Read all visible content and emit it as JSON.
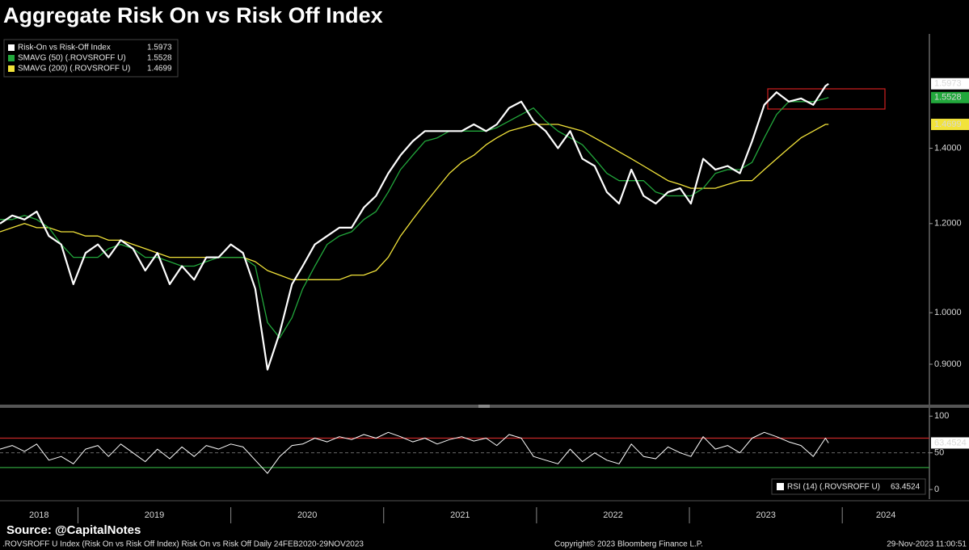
{
  "title": "Aggregate Risk On vs Risk Off Index",
  "source": "Source: @CapitalNotes",
  "footer": {
    "description": ".ROVSROFF U Index (Risk On vs Risk Off Index) Risk On vs Risk Off  Daily 24FEB2020-29NOV2023",
    "copyright": "Copyright© 2023 Bloomberg Finance L.P.",
    "timestamp": "29-Nov-2023 11:00:51"
  },
  "chart_data": [
    {
      "type": "line",
      "x": [
        2018.49,
        2018.57,
        2018.65,
        2018.73,
        2018.81,
        2018.89,
        2018.97,
        2019.05,
        2019.13,
        2019.2,
        2019.28,
        2019.36,
        2019.44,
        2019.52,
        2019.6,
        2019.68,
        2019.76,
        2019.84,
        2019.92,
        2020.0,
        2020.08,
        2020.16,
        2020.24,
        2020.32,
        2020.4,
        2020.47,
        2020.55,
        2020.63,
        2020.71,
        2020.79,
        2020.87,
        2020.95,
        2021.03,
        2021.11,
        2021.19,
        2021.27,
        2021.35,
        2021.43,
        2021.51,
        2021.59,
        2021.67,
        2021.74,
        2021.82,
        2021.9,
        2021.98,
        2022.06,
        2022.14,
        2022.22,
        2022.3,
        2022.38,
        2022.46,
        2022.54,
        2022.62,
        2022.7,
        2022.78,
        2022.86,
        2022.94,
        2023.01,
        2023.09,
        2023.17,
        2023.25,
        2023.33,
        2023.41,
        2023.49,
        2023.57,
        2023.65,
        2023.73,
        2023.81,
        2023.89,
        2023.91
      ],
      "xlim": [
        2018.49,
        2024.57
      ],
      "xticks": [
        2019,
        2020,
        2021,
        2022,
        2023,
        2024
      ],
      "year_labels": [
        "2018",
        "2019",
        "2020",
        "2021",
        "2022",
        "2023",
        "2024"
      ],
      "ylim": [
        0.83,
        1.76
      ],
      "yticks": [
        {
          "value": 0.9,
          "label": "0.9000"
        },
        {
          "value": 1.0,
          "label": "1.0000"
        },
        {
          "value": 1.2,
          "label": "1.2000"
        },
        {
          "value": 1.4,
          "label": "1.4000"
        }
      ],
      "log_scale": true,
      "grid": false,
      "series": [
        {
          "name": "Risk-On vs Risk-Off Index",
          "color": "#ffffff",
          "values": [
            1.2,
            1.22,
            1.21,
            1.23,
            1.17,
            1.15,
            1.06,
            1.13,
            1.15,
            1.12,
            1.16,
            1.14,
            1.09,
            1.13,
            1.06,
            1.1,
            1.07,
            1.12,
            1.12,
            1.15,
            1.13,
            1.05,
            0.89,
            0.96,
            1.06,
            1.1,
            1.15,
            1.17,
            1.19,
            1.19,
            1.24,
            1.27,
            1.33,
            1.38,
            1.42,
            1.45,
            1.45,
            1.45,
            1.45,
            1.47,
            1.45,
            1.47,
            1.52,
            1.54,
            1.48,
            1.45,
            1.4,
            1.45,
            1.37,
            1.35,
            1.28,
            1.25,
            1.34,
            1.27,
            1.25,
            1.28,
            1.29,
            1.25,
            1.37,
            1.34,
            1.35,
            1.33,
            1.42,
            1.53,
            1.57,
            1.54,
            1.55,
            1.53,
            1.59,
            1.5973
          ]
        },
        {
          "name": "SMAVG (50) (.ROVSROFF U)",
          "color": "#22a83c",
          "values": [
            1.21,
            1.21,
            1.22,
            1.21,
            1.19,
            1.15,
            1.12,
            1.12,
            1.12,
            1.14,
            1.15,
            1.14,
            1.12,
            1.12,
            1.11,
            1.1,
            1.1,
            1.11,
            1.12,
            1.12,
            1.12,
            1.1,
            0.98,
            0.95,
            0.99,
            1.05,
            1.1,
            1.15,
            1.17,
            1.18,
            1.21,
            1.23,
            1.28,
            1.34,
            1.38,
            1.42,
            1.43,
            1.45,
            1.45,
            1.45,
            1.45,
            1.46,
            1.48,
            1.5,
            1.52,
            1.48,
            1.45,
            1.43,
            1.41,
            1.37,
            1.33,
            1.31,
            1.31,
            1.31,
            1.28,
            1.27,
            1.27,
            1.27,
            1.29,
            1.33,
            1.34,
            1.34,
            1.36,
            1.43,
            1.5,
            1.54,
            1.54,
            1.54,
            1.55,
            1.5528
          ]
        },
        {
          "name": "SMAVG (200) (.ROVSROFF U)",
          "color": "#f2e33a",
          "values": [
            1.18,
            1.19,
            1.2,
            1.19,
            1.19,
            1.18,
            1.18,
            1.17,
            1.17,
            1.16,
            1.16,
            1.15,
            1.14,
            1.13,
            1.12,
            1.12,
            1.12,
            1.12,
            1.12,
            1.12,
            1.12,
            1.11,
            1.09,
            1.08,
            1.07,
            1.07,
            1.07,
            1.07,
            1.07,
            1.08,
            1.08,
            1.09,
            1.12,
            1.17,
            1.21,
            1.25,
            1.29,
            1.33,
            1.36,
            1.38,
            1.41,
            1.43,
            1.45,
            1.46,
            1.47,
            1.47,
            1.47,
            1.46,
            1.45,
            1.43,
            1.41,
            1.39,
            1.37,
            1.35,
            1.33,
            1.31,
            1.3,
            1.29,
            1.29,
            1.29,
            1.3,
            1.31,
            1.31,
            1.34,
            1.37,
            1.4,
            1.43,
            1.45,
            1.47,
            1.4699
          ]
        }
      ]
    },
    {
      "type": "line",
      "x": [
        2018.49,
        2018.57,
        2018.65,
        2018.73,
        2018.81,
        2018.89,
        2018.97,
        2019.05,
        2019.13,
        2019.2,
        2019.28,
        2019.36,
        2019.44,
        2019.52,
        2019.6,
        2019.68,
        2019.76,
        2019.84,
        2019.92,
        2020.0,
        2020.08,
        2020.16,
        2020.24,
        2020.32,
        2020.4,
        2020.47,
        2020.55,
        2020.63,
        2020.71,
        2020.79,
        2020.87,
        2020.95,
        2021.03,
        2021.11,
        2021.19,
        2021.27,
        2021.35,
        2021.43,
        2021.51,
        2021.59,
        2021.67,
        2021.74,
        2021.82,
        2021.9,
        2021.98,
        2022.06,
        2022.14,
        2022.22,
        2022.3,
        2022.38,
        2022.46,
        2022.54,
        2022.62,
        2022.7,
        2022.78,
        2022.86,
        2022.94,
        2023.01,
        2023.09,
        2023.17,
        2023.25,
        2023.33,
        2023.41,
        2023.49,
        2023.57,
        2023.65,
        2023.73,
        2023.81,
        2023.89,
        2023.91
      ],
      "xlim": [
        2018.49,
        2024.57
      ],
      "ylim": [
        -12,
        108
      ],
      "yticks": [
        0,
        50,
        100
      ],
      "log_scale": false,
      "reference_lines": [
        {
          "value": 70,
          "color": "#c62828"
        },
        {
          "value": 30,
          "color": "#2e9e3a"
        },
        {
          "value": 50,
          "color": "#777777",
          "style": "dashed"
        }
      ],
      "series": [
        {
          "name": "RSI (14) (.ROVSROFF U)",
          "color": "#ffffff",
          "values": [
            55,
            60,
            52,
            62,
            40,
            45,
            35,
            55,
            60,
            45,
            62,
            50,
            38,
            55,
            42,
            58,
            45,
            60,
            55,
            62,
            58,
            40,
            22,
            45,
            60,
            62,
            70,
            65,
            72,
            68,
            75,
            70,
            78,
            72,
            65,
            70,
            62,
            68,
            72,
            66,
            70,
            60,
            75,
            70,
            45,
            40,
            35,
            55,
            38,
            50,
            40,
            35,
            62,
            45,
            42,
            58,
            50,
            45,
            72,
            55,
            60,
            50,
            70,
            78,
            72,
            65,
            60,
            45,
            70,
            63.4524
          ]
        }
      ]
    }
  ]
}
